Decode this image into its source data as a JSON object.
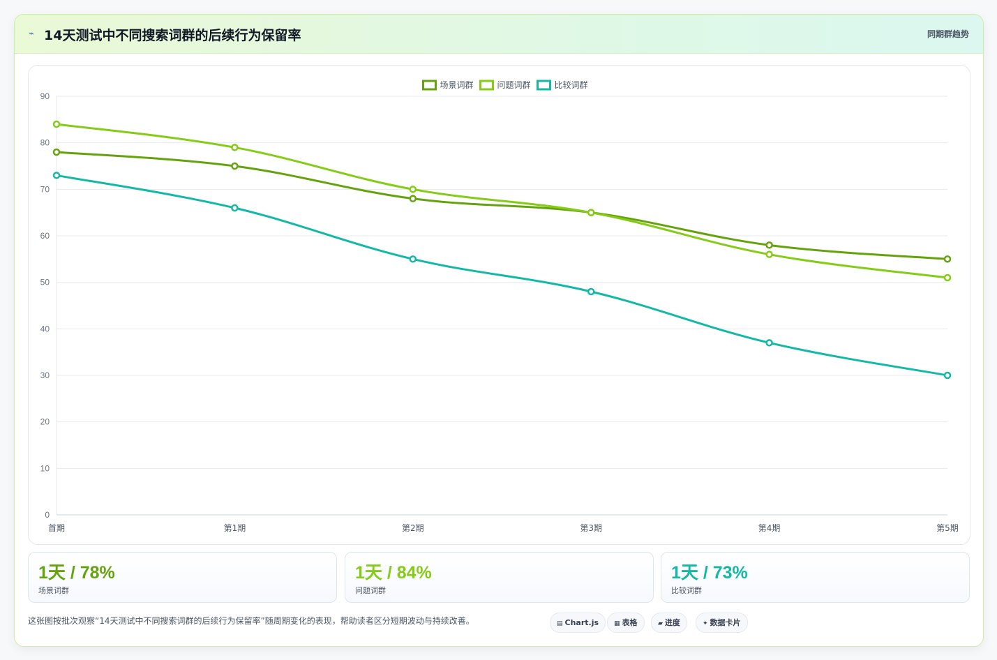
{
  "header": {
    "icon": "trend-icon",
    "title": "14天测试中不同搜索词群的后续行为保留率",
    "tag": "同期群趋势"
  },
  "chart_data": {
    "type": "line",
    "categories": [
      "首期",
      "第1期",
      "第2期",
      "第3期",
      "第4期",
      "第5期"
    ],
    "series": [
      {
        "name": "场景词群",
        "color": "#65a30d",
        "values": [
          78,
          75,
          68,
          65,
          58,
          55
        ]
      },
      {
        "name": "问题词群",
        "color": "#84cc16",
        "values": [
          84,
          79,
          70,
          65,
          56,
          51
        ]
      },
      {
        "name": "比较词群",
        "color": "#14b8a6",
        "values": [
          73,
          66,
          55,
          48,
          37,
          30
        ]
      }
    ],
    "ylim": [
      0,
      90
    ],
    "yticks": [
      0,
      10,
      20,
      30,
      40,
      50,
      60,
      70,
      80,
      90
    ],
    "grid": true,
    "legend": "top-center",
    "smooth": true
  },
  "stats": [
    {
      "value": "1天 / 78%",
      "label": "场景词群",
      "color": "#65a30d"
    },
    {
      "value": "1天 / 84%",
      "label": "问题词群",
      "color": "#84cc16"
    },
    {
      "value": "1天 / 73%",
      "label": "比较词群",
      "color": "#14b8a6"
    }
  ],
  "footnote": "这张图按批次观察“14天测试中不同搜索词群的后续行为保留率”随周期变化的表现，帮助读者区分短期波动与持续改善。",
  "chips": [
    {
      "icon": "chart-icon",
      "glyph": "▤",
      "label": "Chart.js"
    },
    {
      "icon": "table-icon",
      "glyph": "▦",
      "label": "表格"
    },
    {
      "icon": "progress-icon",
      "glyph": "▰",
      "label": "进度"
    },
    {
      "icon": "sparkle-icon",
      "glyph": "✦",
      "label": "数据卡片"
    }
  ]
}
